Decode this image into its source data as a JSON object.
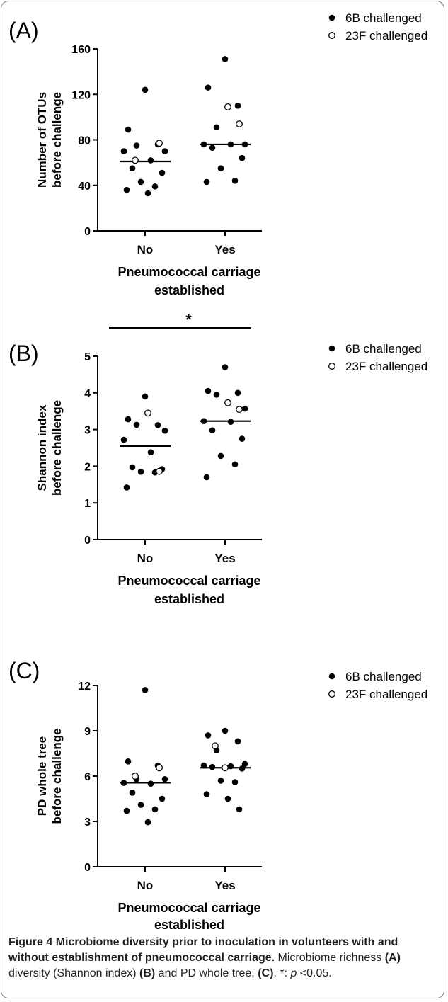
{
  "caption": {
    "fig_label": "Figure 4",
    "title": "Microbiome diversity prior to inoculation in volunteers with and without establishment of pneumococcal carriage.",
    "text_1": "Microbiome richness",
    "ref_a": "(A)",
    "text_2": "diversity (Shannon index)",
    "ref_b": "(B)",
    "text_3": "and PD whole tree,",
    "ref_c": "(C)",
    "text_4": ". *:",
    "p": "p",
    "text_5": "<0.05."
  },
  "chart_data": [
    {
      "panel_label": "(A)",
      "type": "scatter",
      "categories": [
        "No",
        "Yes"
      ],
      "xlabel": [
        "Pneumococcal carriage",
        "established"
      ],
      "ylabel": [
        "Number of OTUs",
        "before challenge"
      ],
      "ylim": [
        0,
        160
      ],
      "yticks": [
        0,
        40,
        80,
        120,
        160
      ],
      "legend": [
        "6B challenged",
        "23F challenged"
      ],
      "legend_position": "top-right",
      "significance": "",
      "medians": [
        61,
        76
      ],
      "series": [
        {
          "name": "6B challenged",
          "category": "No",
          "values": [
            124,
            89,
            76,
            75,
            70,
            70,
            62,
            55,
            51,
            43,
            39,
            36,
            33
          ]
        },
        {
          "name": "23F challenged",
          "category": "No",
          "values": [
            77,
            62
          ]
        },
        {
          "name": "6B challenged",
          "category": "Yes",
          "values": [
            151,
            126,
            110,
            91,
            76,
            76,
            76,
            73,
            64,
            55,
            44,
            43
          ]
        },
        {
          "name": "23F challenged",
          "category": "Yes",
          "values": [
            109,
            94
          ]
        }
      ]
    },
    {
      "panel_label": "(B)",
      "type": "scatter",
      "categories": [
        "No",
        "Yes"
      ],
      "xlabel": [
        "Pneumococcal carriage",
        "established"
      ],
      "ylabel": [
        "Shannon index",
        "before challenge"
      ],
      "ylim": [
        0,
        5
      ],
      "yticks": [
        0,
        1,
        2,
        3,
        4,
        5
      ],
      "legend": [
        "6B challenged",
        "23F challenged"
      ],
      "legend_position": "top-right",
      "significance": "*",
      "medians": [
        2.55,
        3.23
      ],
      "series": [
        {
          "name": "6B challenged",
          "category": "No",
          "values": [
            3.9,
            3.28,
            3.12,
            3.13,
            2.97,
            2.72,
            2.38,
            1.97,
            1.92,
            1.85,
            1.83,
            1.42
          ]
        },
        {
          "name": "23F challenged",
          "category": "No",
          "values": [
            3.45,
            1.86
          ]
        },
        {
          "name": "6B challenged",
          "category": "Yes",
          "values": [
            4.7,
            4.05,
            4.0,
            3.95,
            3.57,
            3.23,
            3.21,
            2.98,
            2.75,
            2.28,
            2.05,
            1.7
          ]
        },
        {
          "name": "23F challenged",
          "category": "Yes",
          "values": [
            3.73,
            3.55
          ]
        }
      ]
    },
    {
      "panel_label": "(C)",
      "type": "scatter",
      "categories": [
        "No",
        "Yes"
      ],
      "xlabel": [
        "Pneumococcal carriage",
        "established"
      ],
      "ylabel": [
        "PD whole tree",
        "before challenge"
      ],
      "ylim": [
        0,
        12
      ],
      "yticks": [
        0,
        3,
        6,
        9,
        12
      ],
      "legend": [
        "6B challenged",
        "23F challenged"
      ],
      "legend_position": "top-right",
      "significance": "",
      "medians": [
        5.56,
        6.55
      ],
      "series": [
        {
          "name": "6B challenged",
          "category": "No",
          "values": [
            11.7,
            6.97,
            6.7,
            5.8,
            5.8,
            5.55,
            5.5,
            4.9,
            4.5,
            4.1,
            3.8,
            3.7,
            2.95
          ]
        },
        {
          "name": "23F challenged",
          "category": "No",
          "values": [
            6.55,
            6.0
          ]
        },
        {
          "name": "6B challenged",
          "category": "Yes",
          "values": [
            9.0,
            8.7,
            8.3,
            7.7,
            6.8,
            6.7,
            6.65,
            6.6,
            6.5,
            5.7,
            5.6,
            4.8,
            4.5,
            3.8
          ]
        },
        {
          "name": "23F challenged",
          "category": "Yes",
          "values": [
            8.0,
            6.55
          ]
        }
      ]
    }
  ],
  "colors": {
    "ink": "#000000",
    "caption_ink": "#231f20",
    "frame": "#7a7a7a"
  }
}
